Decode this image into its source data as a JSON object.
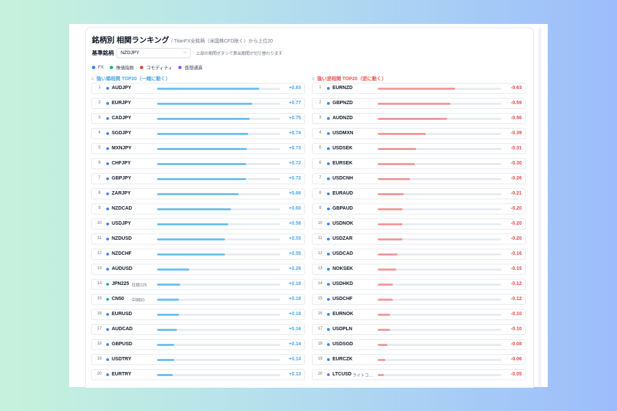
{
  "header": {
    "title": "銘柄別 相関ランキング",
    "subtitle": "/ TitanFX全銘柄（米国株CFD除く）から上位20"
  },
  "selector": {
    "label": "基準銘柄",
    "value": "NZDJPY",
    "hint": "上部の期間ボタンで算出期間が切り替わります"
  },
  "legend": [
    {
      "label": "FX",
      "color": "#3b82f6"
    },
    {
      "label": "株価指数",
      "color": "#10b981"
    },
    {
      "label": "コモディティ",
      "color": "#ef4444"
    },
    {
      "label": "仮想通貨",
      "color": "#8b5cf6"
    }
  ],
  "positive": {
    "heading": "強い順相関 TOP20（一緒に動く）",
    "items": [
      {
        "rank": "1",
        "symbol": "AUDJPY",
        "sub": "",
        "value": 0.83,
        "value_text": "+0.83",
        "category": "FX"
      },
      {
        "rank": "2",
        "symbol": "EURJPY",
        "sub": "",
        "value": 0.77,
        "value_text": "+0.77",
        "category": "FX"
      },
      {
        "rank": "3",
        "symbol": "CADJPY",
        "sub": "",
        "value": 0.75,
        "value_text": "+0.75",
        "category": "FX"
      },
      {
        "rank": "4",
        "symbol": "SGDJPY",
        "sub": "",
        "value": 0.74,
        "value_text": "+0.74",
        "category": "FX"
      },
      {
        "rank": "5",
        "symbol": "MXNJPY",
        "sub": "",
        "value": 0.73,
        "value_text": "+0.73",
        "category": "FX"
      },
      {
        "rank": "6",
        "symbol": "CHFJPY",
        "sub": "",
        "value": 0.72,
        "value_text": "+0.72",
        "category": "FX"
      },
      {
        "rank": "7",
        "symbol": "GBPJPY",
        "sub": "",
        "value": 0.72,
        "value_text": "+0.72",
        "category": "FX"
      },
      {
        "rank": "8",
        "symbol": "ZARJPY",
        "sub": "",
        "value": 0.66,
        "value_text": "+0.66",
        "category": "FX"
      },
      {
        "rank": "9",
        "symbol": "NZDCAD",
        "sub": "",
        "value": 0.6,
        "value_text": "+0.60",
        "category": "FX"
      },
      {
        "rank": "10",
        "symbol": "USDJPY",
        "sub": "",
        "value": 0.58,
        "value_text": "+0.58",
        "category": "FX"
      },
      {
        "rank": "11",
        "symbol": "NZDUSD",
        "sub": "",
        "value": 0.55,
        "value_text": "+0.55",
        "category": "FX"
      },
      {
        "rank": "12",
        "symbol": "NZDCHF",
        "sub": "",
        "value": 0.55,
        "value_text": "+0.55",
        "category": "FX"
      },
      {
        "rank": "13",
        "symbol": "AUDUSD",
        "sub": "",
        "value": 0.26,
        "value_text": "+0.26",
        "category": "FX"
      },
      {
        "rank": "14",
        "symbol": "JPN225",
        "sub": "日経225",
        "value": 0.19,
        "value_text": "+0.19",
        "category": "株価指数"
      },
      {
        "rank": "15",
        "symbol": "CN50",
        "sub": "中国50",
        "value": 0.18,
        "value_text": "+0.18",
        "category": "株価指数"
      },
      {
        "rank": "16",
        "symbol": "EURUSD",
        "sub": "",
        "value": 0.18,
        "value_text": "+0.18",
        "category": "FX"
      },
      {
        "rank": "17",
        "symbol": "AUDCAD",
        "sub": "",
        "value": 0.16,
        "value_text": "+0.16",
        "category": "FX"
      },
      {
        "rank": "18",
        "symbol": "GBPUSD",
        "sub": "",
        "value": 0.14,
        "value_text": "+0.14",
        "category": "FX"
      },
      {
        "rank": "19",
        "symbol": "USDTRY",
        "sub": "",
        "value": 0.14,
        "value_text": "+0.14",
        "category": "FX"
      },
      {
        "rank": "20",
        "symbol": "EURTRY",
        "sub": "",
        "value": 0.13,
        "value_text": "+0.13",
        "category": "FX"
      }
    ]
  },
  "negative": {
    "heading": "強い逆相関 TOP20（逆に動く）",
    "items": [
      {
        "rank": "1",
        "symbol": "EURNZD",
        "sub": "",
        "value": -0.63,
        "value_text": "-0.63",
        "category": "FX"
      },
      {
        "rank": "2",
        "symbol": "GBPNZD",
        "sub": "",
        "value": -0.59,
        "value_text": "-0.59",
        "category": "FX"
      },
      {
        "rank": "3",
        "symbol": "AUDNZD",
        "sub": "",
        "value": -0.56,
        "value_text": "-0.56",
        "category": "FX"
      },
      {
        "rank": "4",
        "symbol": "USDMXN",
        "sub": "",
        "value": -0.39,
        "value_text": "-0.39",
        "category": "FX"
      },
      {
        "rank": "5",
        "symbol": "USDSEK",
        "sub": "",
        "value": -0.31,
        "value_text": "-0.31",
        "category": "FX"
      },
      {
        "rank": "6",
        "symbol": "EURSEK",
        "sub": "",
        "value": -0.3,
        "value_text": "-0.30",
        "category": "FX"
      },
      {
        "rank": "7",
        "symbol": "USDCNH",
        "sub": "",
        "value": -0.26,
        "value_text": "-0.26",
        "category": "FX"
      },
      {
        "rank": "8",
        "symbol": "EURAUD",
        "sub": "",
        "value": -0.21,
        "value_text": "-0.21",
        "category": "FX"
      },
      {
        "rank": "9",
        "symbol": "GBPAUD",
        "sub": "",
        "value": -0.2,
        "value_text": "-0.20",
        "category": "FX"
      },
      {
        "rank": "10",
        "symbol": "USDNOK",
        "sub": "",
        "value": -0.2,
        "value_text": "-0.20",
        "category": "FX"
      },
      {
        "rank": "11",
        "symbol": "USDZAR",
        "sub": "",
        "value": -0.2,
        "value_text": "-0.20",
        "category": "FX"
      },
      {
        "rank": "12",
        "symbol": "USDCAD",
        "sub": "",
        "value": -0.16,
        "value_text": "-0.16",
        "category": "FX"
      },
      {
        "rank": "13",
        "symbol": "NOKSEK",
        "sub": "",
        "value": -0.15,
        "value_text": "-0.15",
        "category": "FX"
      },
      {
        "rank": "14",
        "symbol": "USDHKD",
        "sub": "",
        "value": -0.12,
        "value_text": "-0.12",
        "category": "FX"
      },
      {
        "rank": "15",
        "symbol": "USDCHF",
        "sub": "",
        "value": -0.12,
        "value_text": "-0.12",
        "category": "FX"
      },
      {
        "rank": "16",
        "symbol": "EURNOK",
        "sub": "",
        "value": -0.1,
        "value_text": "-0.10",
        "category": "FX"
      },
      {
        "rank": "17",
        "symbol": "USDPLN",
        "sub": "",
        "value": -0.1,
        "value_text": "-0.10",
        "category": "FX"
      },
      {
        "rank": "18",
        "symbol": "USDSGD",
        "sub": "",
        "value": -0.08,
        "value_text": "-0.08",
        "category": "FX"
      },
      {
        "rank": "19",
        "symbol": "EURCZK",
        "sub": "",
        "value": -0.06,
        "value_text": "-0.06",
        "category": "FX"
      },
      {
        "rank": "20",
        "symbol": "LTCUSD",
        "sub": "ライトコ…",
        "value": -0.05,
        "value_text": "-0.05",
        "category": "仮想通貨"
      }
    ]
  }
}
